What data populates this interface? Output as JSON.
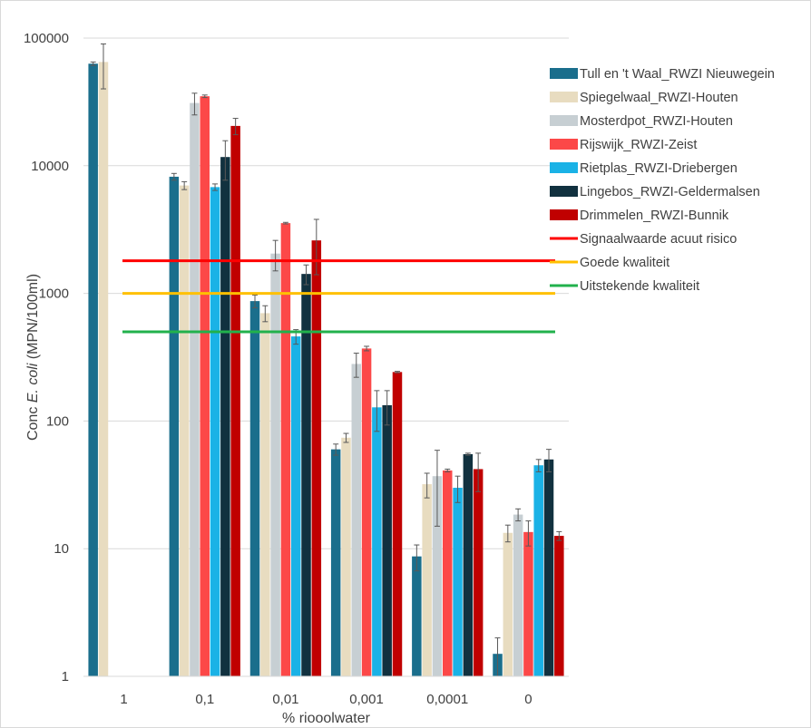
{
  "chart_data": {
    "type": "bar",
    "xlabel": "% riooolwater",
    "ylabel_prefix": "Conc ",
    "ylabel_italic": "E. coli",
    "ylabel_suffix": " (MPN/100ml)",
    "y_scale": "log",
    "ylim": [
      1,
      100000
    ],
    "y_ticks": [
      1,
      10,
      100,
      1000,
      10000,
      100000
    ],
    "y_tick_labels": [
      "1",
      "10",
      "100",
      "1000",
      "10000",
      "100000"
    ],
    "categories": [
      "1",
      "0,1",
      "0,01",
      "0,001",
      "0,0001",
      "0"
    ],
    "grid": true,
    "legend_position": "right",
    "series": [
      {
        "name": "Tull en 't Waal_RWZI Nieuwegein",
        "color": "#1a6e8c",
        "values": [
          63000,
          8200,
          870,
          60,
          8.7,
          1.5
        ],
        "err": [
          2000,
          500,
          100,
          6,
          2,
          0.5
        ]
      },
      {
        "name": "Spiegelwaal_RWZI-Houten",
        "color": "#e8dcc0",
        "values": [
          65000,
          7000,
          700,
          74,
          32,
          13.3
        ],
        "err": [
          25000,
          500,
          100,
          6,
          7,
          2
        ]
      },
      {
        "name": "Mosterdpot_RWZI-Houten",
        "color": "#c7cfd3",
        "values": [
          null,
          31000,
          2050,
          280,
          37,
          18.5
        ],
        "err": [
          null,
          6000,
          550,
          60,
          22,
          2
        ]
      },
      {
        "name": "Rijswijk_RWZI-Zeist",
        "color": "#fc4848",
        "values": [
          null,
          35000,
          3550,
          370,
          41,
          13.5
        ],
        "err": [
          null,
          800,
          50,
          15,
          1,
          3
        ]
      },
      {
        "name": "Rietplas_RWZI-Driebergen",
        "color": "#1ab2e6",
        "values": [
          null,
          6800,
          460,
          128,
          30,
          45
        ],
        "err": [
          null,
          400,
          60,
          45,
          7,
          5
        ]
      },
      {
        "name": "Lingebos_RWZI-Geldermalsen",
        "color": "#11313f",
        "values": [
          null,
          11700,
          1420,
          133,
          55,
          50
        ],
        "err": [
          null,
          4000,
          250,
          40,
          1,
          10
        ]
      },
      {
        "name": "Drimmelen_RWZI-Bunnik",
        "color": "#c00000",
        "values": [
          null,
          20500,
          2600,
          242,
          42,
          12.6
        ],
        "err": [
          null,
          3000,
          1200,
          3,
          14,
          1
        ]
      }
    ],
    "reference_lines": [
      {
        "name": "Signaalwaarde acuut risico",
        "color": "#ff0000",
        "value": 1800
      },
      {
        "name": "Goede kwaliteit",
        "color": "#ffc000",
        "value": 1000
      },
      {
        "name": "Uitstekende kwaliteit",
        "color": "#22b14c",
        "value": 500
      }
    ]
  }
}
